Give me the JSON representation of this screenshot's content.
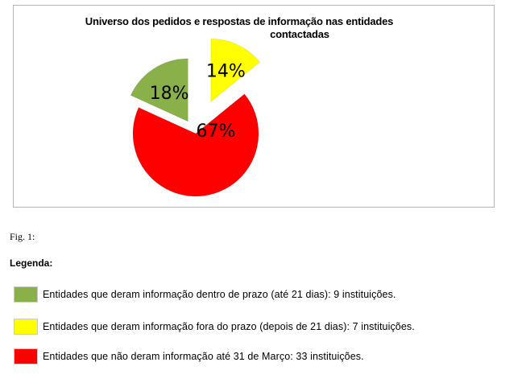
{
  "chart_data": {
    "type": "pie",
    "title_line1": "Universo dos pedidos e respostas de informação nas entidades",
    "title_line2": "contactadas",
    "slices": [
      {
        "label": "18%",
        "value": 18,
        "color": "#8ab04a"
      },
      {
        "label": "14%",
        "value": 14,
        "color": "#ffff00"
      },
      {
        "label": "67%",
        "value": 67,
        "color": "#ff0000"
      }
    ]
  },
  "caption": "Fig. 1:",
  "legend": {
    "heading": "Legenda:",
    "items": [
      {
        "text": "Entidades que deram informação dentro de prazo (até 21 dias): 9 instituições.",
        "color": "#8ab04a"
      },
      {
        "text": "Entidades que deram informação fora do prazo (depois de 21 dias): 7 instituições.",
        "color": "#ffff00"
      },
      {
        "text": "Entidades que não deram informação até 31 de Março: 33 instituições.",
        "color": "#ff0000"
      }
    ]
  }
}
